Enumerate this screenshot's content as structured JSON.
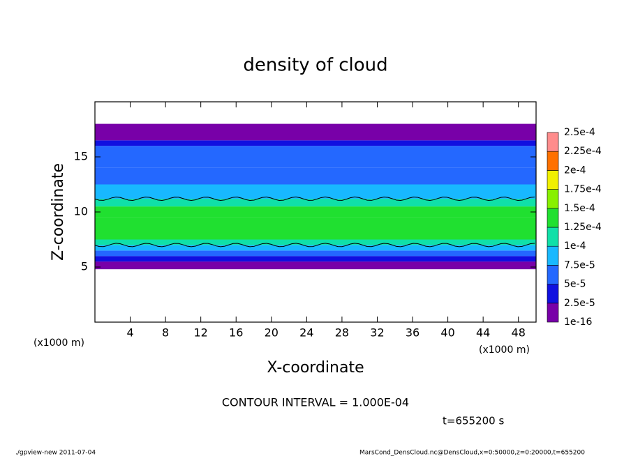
{
  "chart_data": {
    "type": "heatmap",
    "title": "density of cloud",
    "x_label": "X-coordinate",
    "y_label": "Z-coordinate",
    "x_unit": "(x1000 m)",
    "y_unit": "(x1000 m)",
    "xlim": [
      0,
      50
    ],
    "xticks": [
      4,
      8,
      12,
      16,
      20,
      24,
      28,
      32,
      36,
      40,
      44,
      48
    ],
    "ylim": [
      0,
      20
    ],
    "yticks": [
      5,
      10,
      15
    ],
    "z_bins": [
      4.8,
      5.5,
      6,
      6.5,
      7,
      7.5,
      9.5,
      10.5,
      11.2,
      12.5,
      14,
      16,
      16.5,
      18
    ],
    "values": [
      1e-05,
      3e-05,
      6e-05,
      9e-05,
      0.000115,
      0.00014,
      0.00013,
      0.00011,
      8e-05,
      6e-05,
      5e-05,
      3e-05,
      1e-05
    ],
    "colorbar_levels": [
      1e-16,
      {
        "value": 2.5e-05,
        "label": "2.5e-5"
      },
      {
        "value": 5e-05,
        "label": "5e-5"
      },
      {
        "value": 7.5e-05,
        "label": "7.5e-5"
      },
      {
        "value": 0.0001,
        "label": "1e-4"
      },
      {
        "value": 0.000125,
        "label": "1.25e-4"
      },
      {
        "value": 0.00015,
        "label": "1.5e-4"
      },
      {
        "value": 0.000175,
        "label": "1.75e-4"
      },
      {
        "value": 0.0002,
        "label": "2e-4"
      },
      {
        "value": 0.000225,
        "label": "2.25e-4"
      },
      {
        "value": 0.00025,
        "label": "2.5e-4"
      }
    ],
    "colorbar_colors": [
      "#7800a8",
      "#1010e0",
      "#2468ff",
      "#18b8ff",
      "#10e0a8",
      "#20e030",
      "#88f000",
      "#f0f000",
      "#ff7000",
      "#ff8c8c"
    ],
    "contour_interval": 0.0001,
    "contour_interval_label": "CONTOUR INTERVAL = 1.000E-04",
    "time_label": "t=655200 s",
    "footer_left": "./gpview-new  2011-07-04",
    "footer_right": "MarsCond_DensCloud.nc@DensCloud,x=0:50000,z=0:20000,t=655200"
  }
}
